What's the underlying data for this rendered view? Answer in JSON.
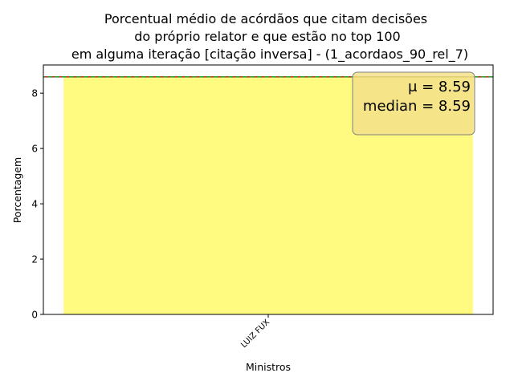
{
  "chart_data": {
    "type": "bar",
    "title_lines": [
      "Porcentual médio de acórdãos que citam decisões",
      "do próprio relator e que estão no top 100",
      "em alguma iteração [citação inversa] - (1_acordaos_90_rel_7)"
    ],
    "xlabel": "Ministros",
    "ylabel": "Porcentagem",
    "categories": [
      "LUIZ FUX"
    ],
    "values": [
      8.59
    ],
    "ylim": [
      0,
      9.02
    ],
    "yticks": [
      0,
      2,
      4,
      6,
      8
    ],
    "mean": 8.59,
    "median": 8.59,
    "mean_label": "μ = 8.59",
    "median_label": "median = 8.59",
    "stats_box_placement": "top-right",
    "colors": {
      "bar": "#fffa80",
      "mean_line": "#d62728",
      "median_line": "#2ca02c",
      "box_fill": "#f5e08a",
      "box_edge": "#808080"
    }
  }
}
